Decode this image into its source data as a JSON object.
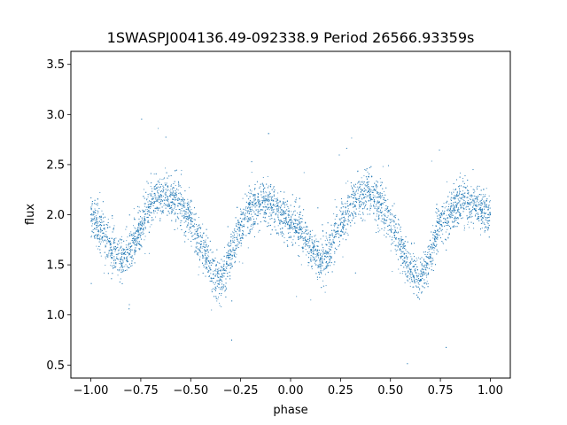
{
  "chart_data": {
    "type": "scatter",
    "title": "1SWASPJ004136.49-092338.9 Period 26566.93359s",
    "xlabel": "phase",
    "ylabel": "flux",
    "xlim": [
      -1.1,
      1.1
    ],
    "ylim": [
      0.37,
      3.63
    ],
    "xticks": [
      -1.0,
      -0.75,
      -0.5,
      -0.25,
      0.0,
      0.25,
      0.5,
      0.75,
      1.0
    ],
    "xtick_labels": [
      "−1.00",
      "−0.75",
      "−0.50",
      "−0.25",
      "0.00",
      "0.25",
      "0.50",
      "0.75",
      "1.00"
    ],
    "yticks": [
      0.5,
      1.0,
      1.5,
      2.0,
      2.5,
      3.0,
      3.5
    ],
    "ytick_labels": [
      "0.5",
      "1.0",
      "1.5",
      "2.0",
      "2.5",
      "3.0",
      "3.5"
    ],
    "grid": false,
    "marker_color": "#1f77b4",
    "series": [
      {
        "x": [
          -1.0,
          -0.95,
          -0.9,
          -0.85,
          -0.8,
          -0.75,
          -0.7,
          -0.65,
          -0.6,
          -0.55,
          -0.5,
          -0.45,
          -0.4,
          -0.35,
          -0.3,
          -0.25,
          -0.2,
          -0.15,
          -0.1,
          -0.05,
          0.0,
          0.05,
          0.1,
          0.15,
          0.2,
          0.25,
          0.3,
          0.35,
          0.4,
          0.45,
          0.5,
          0.55,
          0.6,
          0.65,
          0.7,
          0.75,
          0.8,
          0.85,
          0.9,
          0.95,
          1.0
        ],
        "y": [
          2.0,
          1.85,
          1.65,
          1.55,
          1.65,
          1.9,
          2.1,
          2.2,
          2.2,
          2.1,
          1.95,
          1.7,
          1.45,
          1.35,
          1.6,
          1.9,
          2.05,
          2.1,
          2.1,
          2.0,
          1.95,
          1.85,
          1.65,
          1.55,
          1.65,
          1.9,
          2.1,
          2.2,
          2.2,
          2.1,
          1.95,
          1.7,
          1.45,
          1.35,
          1.6,
          1.9,
          2.05,
          2.1,
          2.1,
          2.05,
          2.0
        ]
      }
    ]
  }
}
